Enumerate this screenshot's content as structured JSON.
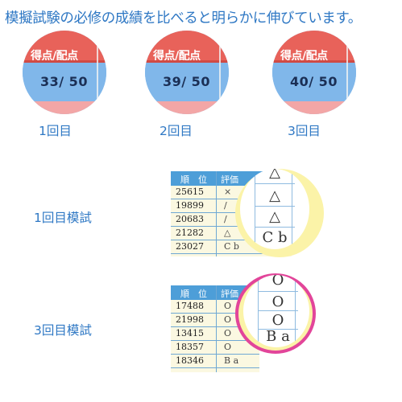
{
  "headline": "模擬試験の必修の成績を比べると明らかに伸びています。",
  "score_circles": [
    {
      "header": "得点/配点",
      "score": "33/ 50",
      "label": "1回目"
    },
    {
      "header": "得点/配点",
      "score": "39/ 50",
      "label": "2回目"
    },
    {
      "header": "得点/配点",
      "score": "40/ 50",
      "label": "3回目"
    }
  ],
  "exam_rows": [
    {
      "label": "1回目模試",
      "header_rank": "順　位",
      "header_eval": "評価",
      "ranks": [
        "25615",
        "19899",
        "20683",
        "21282",
        "23027"
      ],
      "marks": [
        "×",
        "/",
        "/",
        "△",
        "C b"
      ],
      "zoom_marks": [
        "△",
        "△",
        "△",
        "C b"
      ]
    },
    {
      "label": "3回目模試",
      "header_rank": "順　位",
      "header_eval": "評価",
      "ranks": [
        "17488",
        "21998",
        "13415",
        "18357",
        "18346"
      ],
      "marks": [
        "O",
        "O",
        "O",
        "O",
        "B a"
      ],
      "zoom_marks": [
        "O",
        "O",
        "O",
        "B a"
      ]
    }
  ],
  "colors": {
    "headline": "#2f78c4",
    "circle_header": "#e8625a",
    "circle_body": "#80b7ea",
    "highlight_ring_yellow": "#fbf3a8",
    "highlight_ring_pink": "#e2459a"
  }
}
